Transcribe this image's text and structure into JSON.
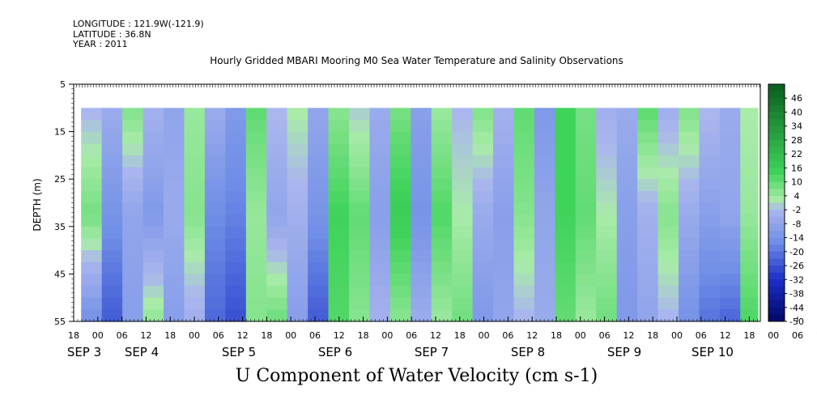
{
  "header": {
    "longitude": "LONGITUDE : 121.9W(-121.9)",
    "latitude": "LATITUDE : 36.8N",
    "year": "YEAR : 2011"
  },
  "chart_data": {
    "type": "heatmap",
    "title": "Hourly Gridded MBARI Mooring M0 Sea Water Temperature and Salinity Observations",
    "subtitle": "U Component of Water Velocity (cm s-1)",
    "ylabel": "DEPTH (m)",
    "y_ticks": [
      "5",
      "15",
      "25",
      "35",
      "45",
      "55"
    ],
    "ylim": [
      5,
      55
    ],
    "y_inverted": true,
    "data_depth_range": [
      10,
      55
    ],
    "x_hour_ticks": [
      "18",
      "00",
      "06",
      "12",
      "18",
      "00",
      "06",
      "12",
      "18",
      "00",
      "06",
      "12",
      "18",
      "00",
      "06",
      "12",
      "18",
      "00",
      "06",
      "12",
      "18",
      "00",
      "06",
      "12",
      "18",
      "00",
      "06",
      "12",
      "18",
      "00",
      "06",
      "12",
      "18"
    ],
    "x_date_labels": [
      "SEP 3",
      "SEP 4",
      "SEP 5",
      "SEP 6",
      "SEP 7",
      "SEP 8",
      "SEP 9",
      "SEP 10"
    ],
    "colorbar_labels": [
      "46",
      "40",
      "34",
      "28",
      "22",
      "16",
      "10",
      "4",
      "-2",
      "-8",
      "-14",
      "-20",
      "-26",
      "-32",
      "-38",
      "-44",
      "-50"
    ],
    "colorbar_range": [
      -50,
      52
    ],
    "colors": {
      "negative_strong": "#1a2fc8",
      "negative_mid": "#6f8ee6",
      "negative_weak": "#aab6ee",
      "positive_weak": "#a9eba9",
      "positive_mid": "#3fd35a",
      "positive_strong": "#0a5e1e"
    },
    "time_columns_hours_from_sep3_18": [
      {
        "t": 4,
        "top": -2,
        "mid": 8,
        "bot": -14
      },
      {
        "t": 10,
        "top": -6,
        "mid": -14,
        "bot": -24
      },
      {
        "t": 16,
        "top": 6,
        "mid": -8,
        "bot": -10
      },
      {
        "t": 22,
        "top": -4,
        "mid": -12,
        "bot": 4
      },
      {
        "t": 28,
        "top": -8,
        "mid": -6,
        "bot": -10
      },
      {
        "t": 34,
        "top": 4,
        "mid": 6,
        "bot": -4
      },
      {
        "t": 40,
        "top": -6,
        "mid": -16,
        "bot": -22
      },
      {
        "t": 46,
        "top": -12,
        "mid": -18,
        "bot": -26
      },
      {
        "t": 52,
        "top": 10,
        "mid": 4,
        "bot": 6
      },
      {
        "t": 58,
        "top": -2,
        "mid": -8,
        "bot": 8
      },
      {
        "t": 64,
        "top": 2,
        "mid": -4,
        "bot": -10
      },
      {
        "t": 70,
        "top": -8,
        "mid": -14,
        "bot": -24
      },
      {
        "t": 76,
        "top": 6,
        "mid": 14,
        "bot": 12
      },
      {
        "t": 82,
        "top": 0,
        "mid": 10,
        "bot": 6
      },
      {
        "t": 88,
        "top": -6,
        "mid": -10,
        "bot": -4
      },
      {
        "t": 94,
        "top": 8,
        "mid": 16,
        "bot": 6
      },
      {
        "t": 100,
        "top": -10,
        "mid": -14,
        "bot": -6
      },
      {
        "t": 106,
        "top": 4,
        "mid": 12,
        "bot": 4
      },
      {
        "t": 112,
        "top": -2,
        "mid": 2,
        "bot": 8
      },
      {
        "t": 118,
        "top": 6,
        "mid": -6,
        "bot": -12
      },
      {
        "t": 124,
        "top": -4,
        "mid": -10,
        "bot": -8
      },
      {
        "t": 130,
        "top": 10,
        "mid": 6,
        "bot": -2
      },
      {
        "t": 136,
        "top": -12,
        "mid": -8,
        "bot": -6
      },
      {
        "t": 142,
        "top": 14,
        "mid": 14,
        "bot": 10
      },
      {
        "t": 148,
        "top": 8,
        "mid": 10,
        "bot": 4
      },
      {
        "t": 154,
        "top": -4,
        "mid": 2,
        "bot": 8
      },
      {
        "t": 160,
        "top": -6,
        "mid": -10,
        "bot": -12
      },
      {
        "t": 166,
        "top": 10,
        "mid": -4,
        "bot": -8
      },
      {
        "t": 172,
        "top": -4,
        "mid": 6,
        "bot": -2
      },
      {
        "t": 178,
        "top": 6,
        "mid": -6,
        "bot": -14
      },
      {
        "t": 184,
        "top": -2,
        "mid": -10,
        "bot": -20
      },
      {
        "t": 190,
        "top": -6,
        "mid": -8,
        "bot": -22
      },
      {
        "t": 196,
        "top": 2,
        "mid": 4,
        "bot": 12
      }
    ]
  }
}
